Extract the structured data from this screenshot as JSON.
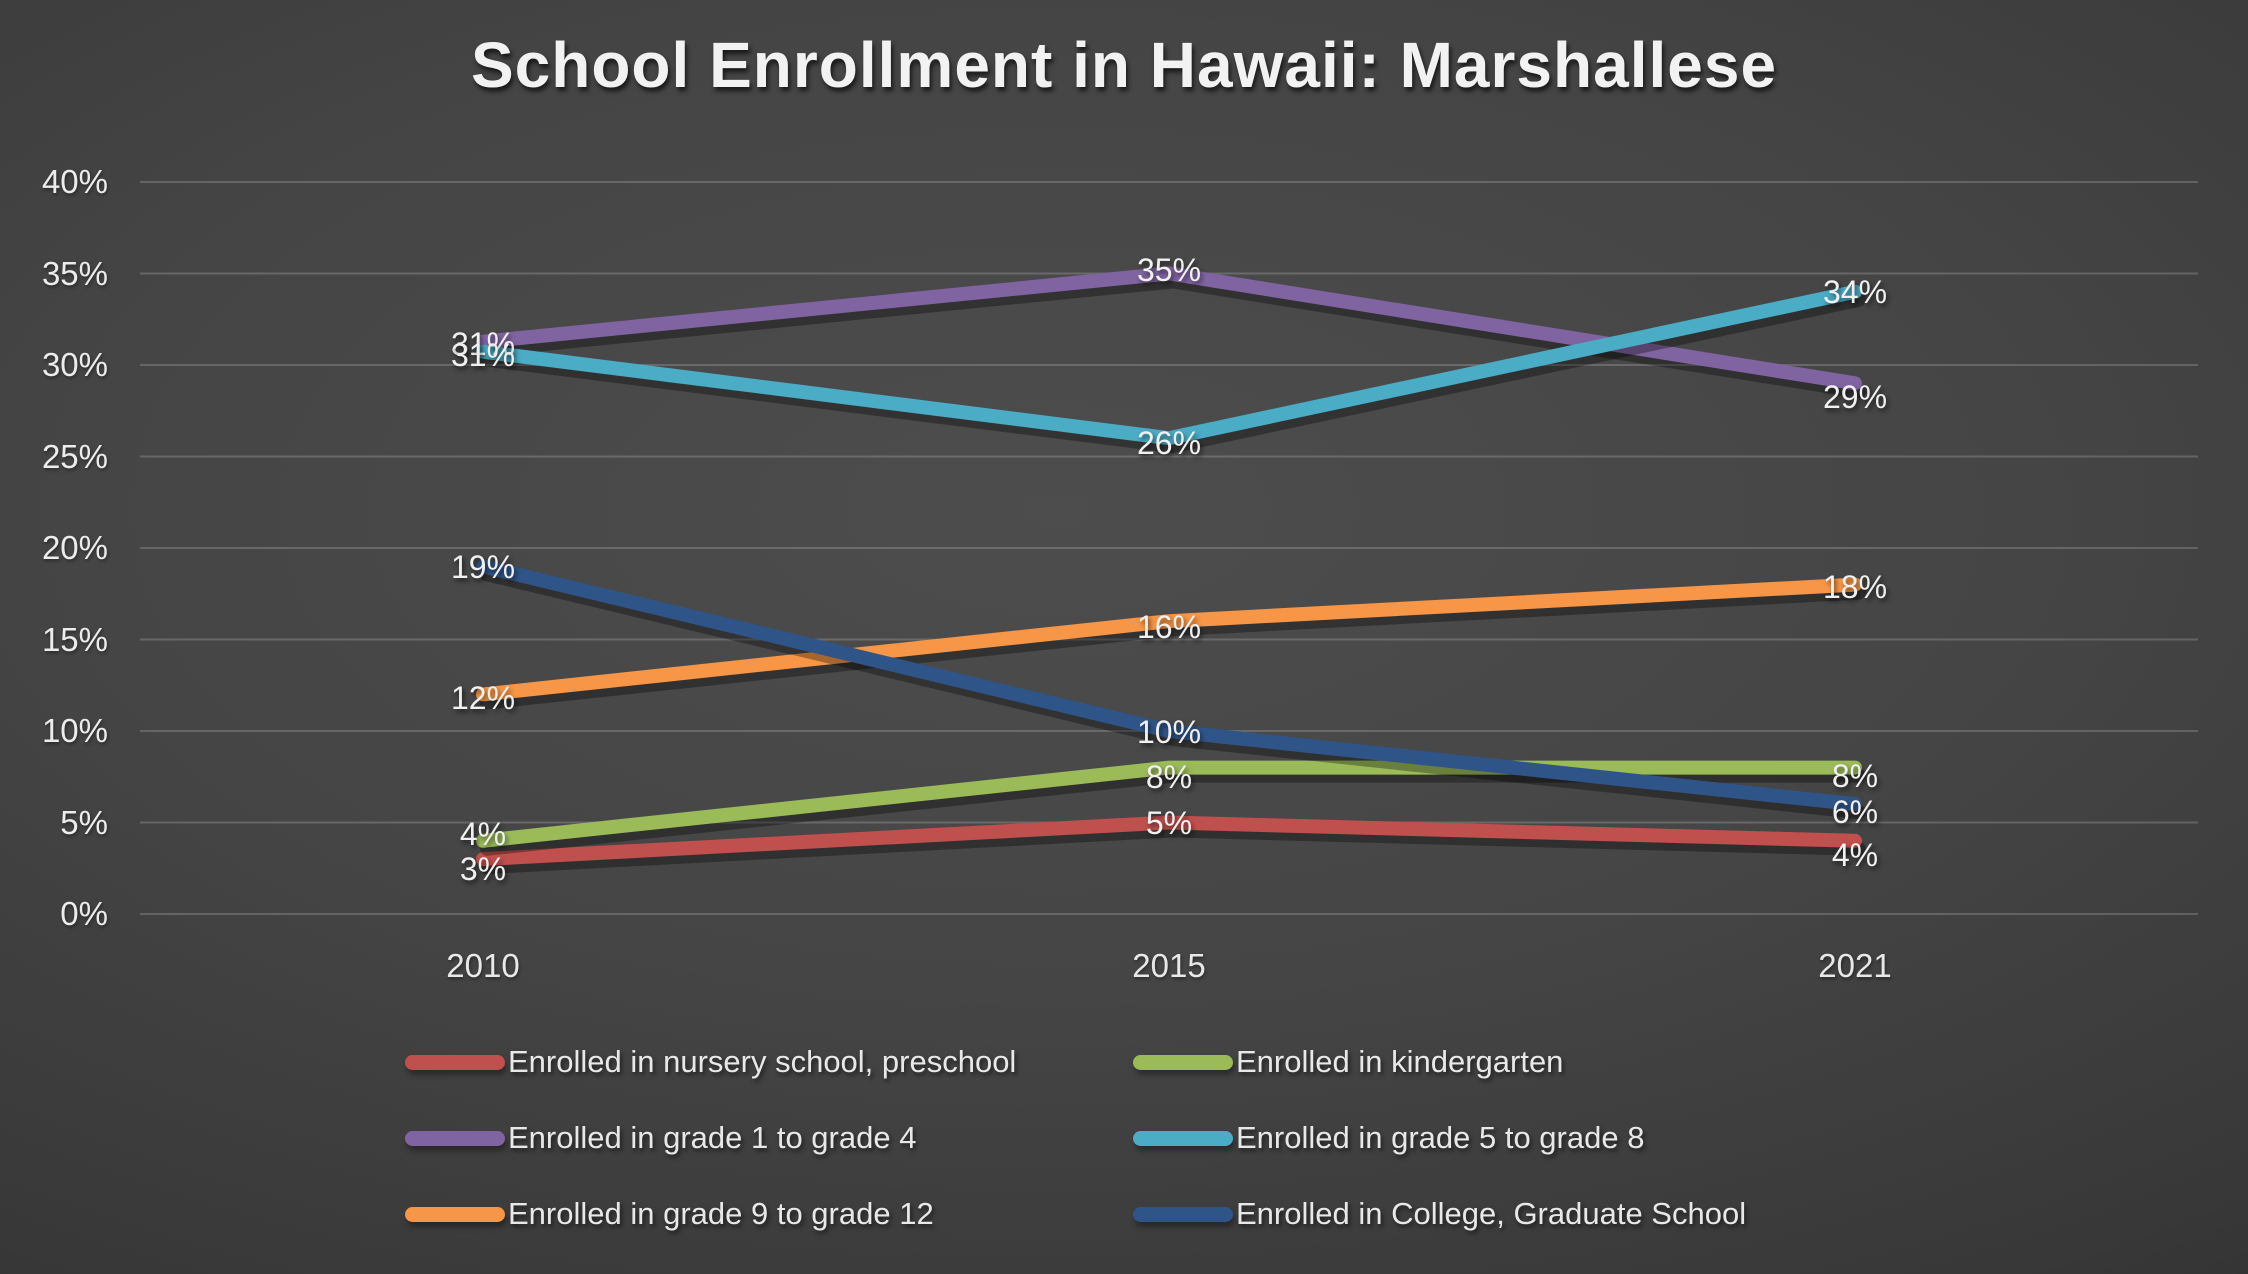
{
  "title": "School Enrollment in Hawaii: Marshallese",
  "chart_data": {
    "type": "line",
    "title": "School Enrollment in Hawaii: Marshallese",
    "categories": [
      "2010",
      "2015",
      "2021"
    ],
    "series": [
      {
        "name": "Enrolled in nursery school, preschool",
        "color": "#C0504D",
        "values": [
          3,
          5,
          4
        ],
        "labels": [
          "3%",
          "5%",
          "4%"
        ]
      },
      {
        "name": "Enrolled in kindergarten",
        "color": "#9BBB59",
        "values": [
          4,
          8,
          8
        ],
        "labels": [
          "4%",
          "8%",
          "8%"
        ]
      },
      {
        "name": "Enrolled in grade 1 to grade 4",
        "color": "#8064A2",
        "values": [
          31,
          35,
          29
        ],
        "labels": [
          "31%",
          "35%",
          "29%"
        ]
      },
      {
        "name": "Enrolled in grade 5 to grade 8",
        "color": "#4BACC6",
        "values": [
          31,
          26,
          34
        ],
        "labels": [
          "31%",
          "26%",
          "34%"
        ]
      },
      {
        "name": "Enrolled in grade 9 to grade 12",
        "color": "#F79646",
        "values": [
          12,
          16,
          18
        ],
        "labels": [
          "12%",
          "16%",
          "18%"
        ]
      },
      {
        "name": "Enrolled in College, Graduate School",
        "color": "#2F5588",
        "values": [
          19,
          10,
          6
        ],
        "labels": [
          "19%",
          "10%",
          "6%"
        ]
      }
    ],
    "xlabel": "",
    "ylabel": "",
    "ylim": [
      0,
      40
    ],
    "y_tick_step": 5,
    "y_ticks": [
      "0%",
      "5%",
      "10%",
      "15%",
      "20%",
      "25%",
      "30%",
      "35%",
      "40%"
    ],
    "grid": true,
    "legend_position": "bottom",
    "background": "dark-gray-gradient",
    "text_color": "#f0f0f0"
  }
}
